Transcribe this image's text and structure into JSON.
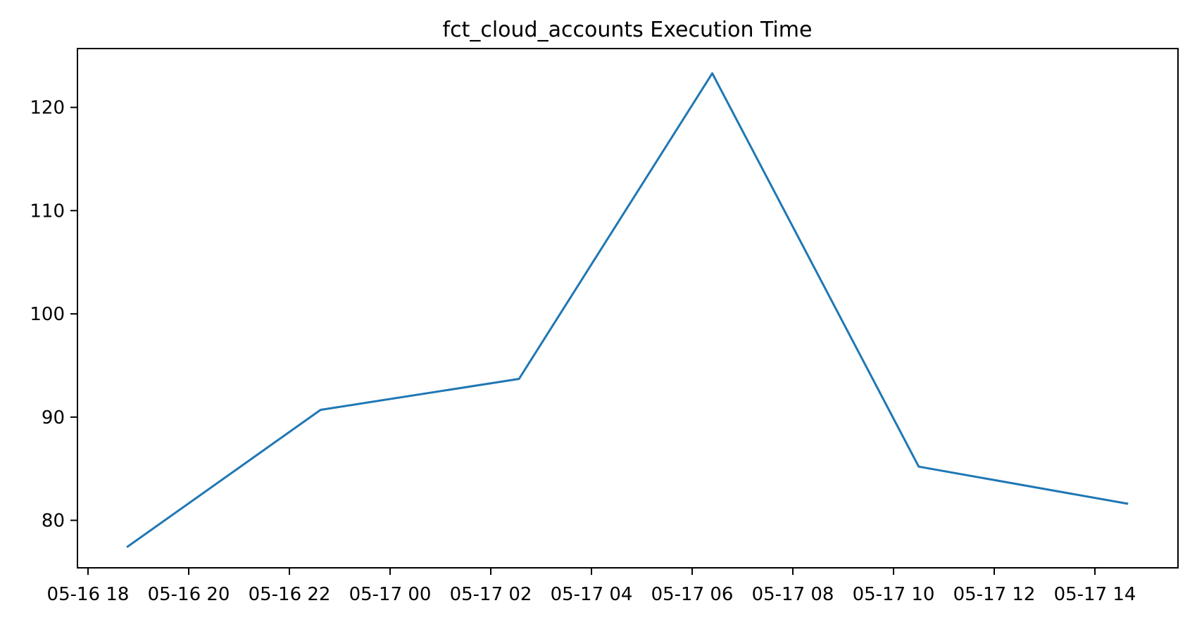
{
  "figure": {
    "title": "fct_cloud_accounts Execution Time"
  },
  "chart_data": {
    "type": "line",
    "title": "fct_cloud_accounts Execution Time",
    "xlabel": "",
    "ylabel": "",
    "grid": false,
    "legend": "none",
    "line_color": "#1f77b4",
    "line_width": 3,
    "background_color": "#ffffff",
    "spine_color": "#000000",
    "x_tick_labels": [
      "05-16 18",
      "05-16 20",
      "05-16 22",
      "05-17 00",
      "05-17 02",
      "05-17 04",
      "05-17 06",
      "05-17 08",
      "05-17 10",
      "05-17 12",
      "05-17 14"
    ],
    "x_tick_hours": [
      0,
      2,
      4,
      6,
      8,
      10,
      12,
      14,
      16,
      18,
      20
    ],
    "y_ticks": [
      80,
      90,
      100,
      110,
      120
    ],
    "xlim_hours": [
      -0.21,
      21.65
    ],
    "ylim": [
      75.4,
      125.7
    ],
    "series": [
      {
        "name": "execution_time",
        "x_labels": [
          "05-16 18:46",
          "05-16 22:37",
          "05-17 02:34",
          "05-17 06:24",
          "05-17 10:30",
          "05-17 14:40"
        ],
        "x_hours": [
          0.77,
          4.62,
          8.56,
          12.4,
          16.5,
          20.66
        ],
        "values": [
          77.4,
          90.7,
          93.7,
          123.3,
          85.2,
          81.6
        ]
      }
    ]
  }
}
